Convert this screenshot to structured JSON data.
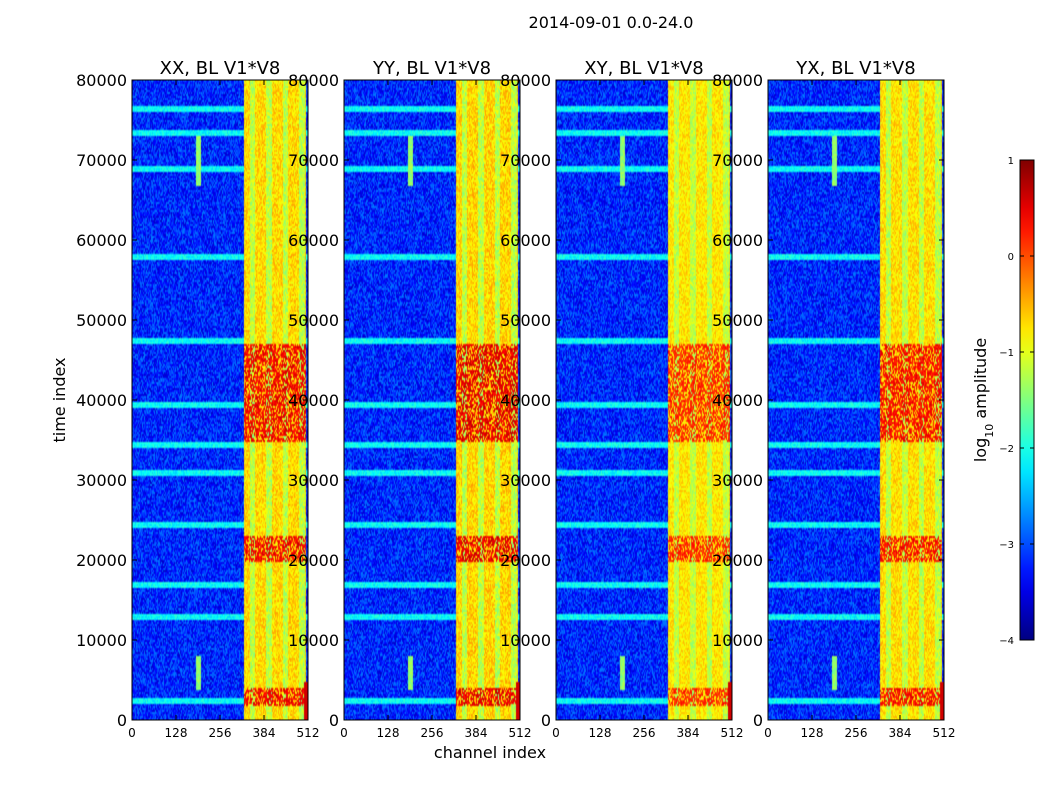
{
  "chart_data": {
    "type": "heatmap",
    "suptitle": "2014-09-01 0.0-24.0",
    "xlabel": "channel index",
    "ylabel": "time index",
    "xlim": [
      0,
      512
    ],
    "ylim": [
      0,
      80000
    ],
    "xticks": [
      "0",
      "128",
      "256",
      "384",
      "512"
    ],
    "yticks": [
      "0",
      "10000",
      "20000",
      "30000",
      "40000",
      "50000",
      "60000",
      "70000",
      "80000"
    ],
    "panels": [
      {
        "title": "XX, BL V1*V8",
        "bright": 1.0
      },
      {
        "title": "YY, BL V1*V8",
        "bright": 1.05
      },
      {
        "title": "XY, BL V1*V8",
        "bright": 0.85
      },
      {
        "title": "YX, BL V1*V8",
        "bright": 0.95
      }
    ],
    "colorbar": {
      "label": "log",
      "label_sub": "10",
      "label_suffix": " amplitude",
      "ticks": [
        "1",
        "0",
        "−1",
        "−2",
        "−3",
        "−4"
      ],
      "range": [
        -4,
        1
      ],
      "colormap": "jet"
    },
    "features": {
      "background_level": -3.2,
      "bright_band_channels": [
        325,
        505
      ],
      "bright_band_level": -0.7,
      "hot_band_level": 0.4,
      "hot_time_ranges": [
        [
          2000,
          4000
        ],
        [
          20000,
          23000
        ],
        [
          35000,
          47000
        ]
      ],
      "vertical_spike_channel": 192,
      "vertical_spike_time_ranges": [
        [
          67000,
          73000
        ],
        [
          4000,
          8000
        ]
      ],
      "horizontal_rfi_times": [
        2500,
        13000,
        17000,
        24500,
        31000,
        34500,
        39500,
        47500,
        58000,
        69000,
        73500,
        76500
      ]
    }
  }
}
